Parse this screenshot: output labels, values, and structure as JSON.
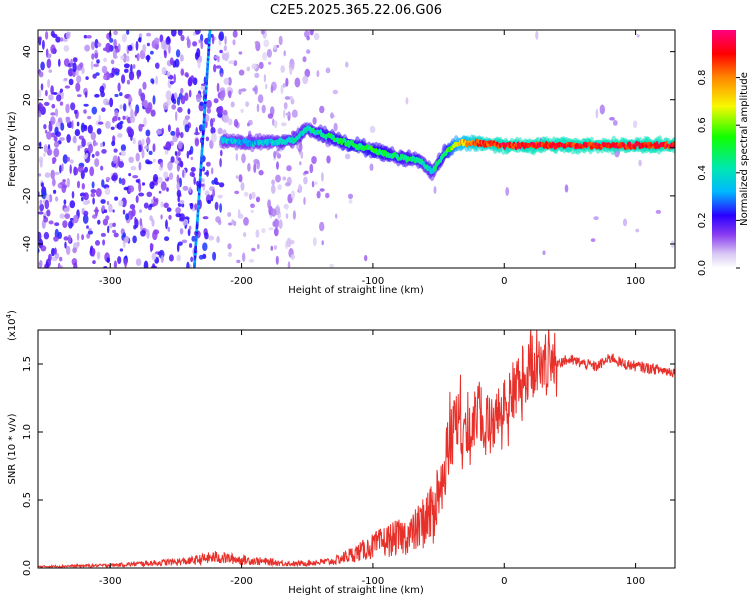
{
  "title": "C2E5.2025.365.22.06.G06",
  "chart_data": [
    {
      "type": "heatmap",
      "xlabel": "Height of straight line (km)",
      "ylabel": "Frequency (Hz)",
      "xlim": [
        -355,
        130
      ],
      "ylim": [
        -50,
        49
      ],
      "xticks": [
        -300,
        -200,
        -100,
        0,
        100
      ],
      "xtick_labels": [
        "-300",
        "-200",
        "-100",
        "0",
        "100"
      ],
      "yticks": [
        -40,
        -20,
        0,
        20,
        40
      ],
      "ytick_labels": [
        "-40",
        "-20",
        "0",
        "20",
        "40"
      ],
      "colorbar": {
        "label": "Normalized spectral amplitude",
        "range": [
          0.0,
          1.0
        ],
        "ticks": [
          0.0,
          0.2,
          0.4,
          0.6,
          0.8
        ],
        "tick_labels": [
          "0.0",
          "0.2",
          "0.4",
          "0.6",
          "0.8"
        ]
      },
      "ridge": {
        "description_free": true,
        "x": [
          -215,
          -190,
          -160,
          -150,
          -140,
          -120,
          -100,
          -80,
          -65,
          -55,
          -45,
          -35,
          -20,
          0,
          50,
          100,
          130
        ],
        "y": [
          3,
          2,
          3,
          8,
          6,
          2,
          -1,
          -4,
          -5,
          -10,
          -2,
          2,
          2,
          1,
          1,
          1,
          1
        ],
        "amplitude": [
          0.35,
          0.35,
          0.4,
          0.4,
          0.45,
          0.5,
          0.5,
          0.45,
          0.45,
          0.4,
          0.5,
          0.7,
          0.85,
          0.9,
          0.9,
          0.9,
          0.9
        ]
      }
    },
    {
      "type": "line",
      "xlabel": "Height of straight line (km)",
      "ylabel": "SNR (10 * v/v)",
      "y_multiplier": "(x10",
      "y_multiplier_exp": "4",
      "y_multiplier_close": ")",
      "xlim": [
        -355,
        130
      ],
      "ylim": [
        0,
        1.75
      ],
      "xticks": [
        -300,
        -200,
        -100,
        0,
        100
      ],
      "xtick_labels": [
        "-300",
        "-200",
        "-100",
        "0",
        "100"
      ],
      "yticks": [
        0.0,
        0.5,
        1.0,
        1.5
      ],
      "ytick_labels": [
        "0.0",
        "0.5",
        "1.0",
        "1.5"
      ],
      "series": [
        {
          "name": "SNR",
          "color": "#e8302a",
          "x": [
            -355,
            -300,
            -240,
            -220,
            -200,
            -160,
            -130,
            -110,
            -90,
            -70,
            -55,
            -48,
            -42,
            -36,
            -30,
            -22,
            -10,
            0,
            10,
            20,
            30,
            50,
            70,
            82,
            90,
            110,
            130
          ],
          "y": [
            0.01,
            0.02,
            0.05,
            0.08,
            0.06,
            0.03,
            0.05,
            0.12,
            0.2,
            0.25,
            0.4,
            0.65,
            0.9,
            1.1,
            0.95,
            1.15,
            1.05,
            1.2,
            1.35,
            1.45,
            1.5,
            1.53,
            1.48,
            1.55,
            1.5,
            1.47,
            1.44
          ]
        }
      ]
    }
  ]
}
